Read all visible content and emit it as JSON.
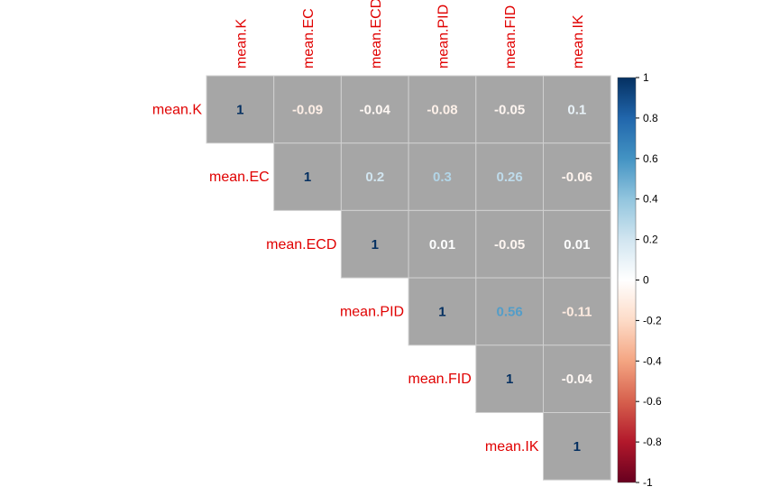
{
  "chart_data": {
    "type": "heatmap",
    "variables": [
      "mean.K",
      "mean.EC",
      "mean.ECD",
      "mean.PID",
      "mean.FID",
      "mean.IK"
    ],
    "matrix": [
      [
        1,
        -0.09,
        -0.04,
        -0.08,
        -0.05,
        0.1
      ],
      [
        null,
        1,
        0.2,
        0.3,
        0.26,
        -0.06
      ],
      [
        null,
        null,
        1,
        0.01,
        -0.05,
        0.01
      ],
      [
        null,
        null,
        null,
        1,
        0.56,
        -0.11
      ],
      [
        null,
        null,
        null,
        null,
        1,
        -0.04
      ],
      [
        null,
        null,
        null,
        null,
        null,
        1
      ]
    ],
    "cell_labels": [
      [
        "1",
        "-0.09",
        "-0.04",
        "-0.08",
        "-0.05",
        "0.1"
      ],
      [
        "",
        "1",
        "0.2",
        "0.3",
        "0.26",
        "-0.06"
      ],
      [
        "",
        "",
        "1",
        "0.01",
        "-0.05",
        "0.01"
      ],
      [
        "",
        "",
        "",
        "1",
        "0.56",
        "-0.11"
      ],
      [
        "",
        "",
        "",
        "",
        "1",
        "-0.04"
      ],
      [
        "",
        "",
        "",
        "",
        "",
        "1"
      ]
    ],
    "shape": "upper-triangle",
    "cell_fill": "#a6a6a6",
    "label_color": "#e00000",
    "colorbar": {
      "range": [
        -1,
        1
      ],
      "ticks": [
        "1",
        "0.8",
        "0.6",
        "0.4",
        "0.2",
        "0",
        "-0.2",
        "-0.4",
        "-0.6",
        "-0.8",
        "-1"
      ],
      "colors": [
        "#67001f",
        "#b2182b",
        "#d6604d",
        "#f4a582",
        "#fddbc7",
        "#ffffff",
        "#d1e5f0",
        "#92c5de",
        "#4393c3",
        "#2166ac",
        "#053061"
      ]
    }
  }
}
